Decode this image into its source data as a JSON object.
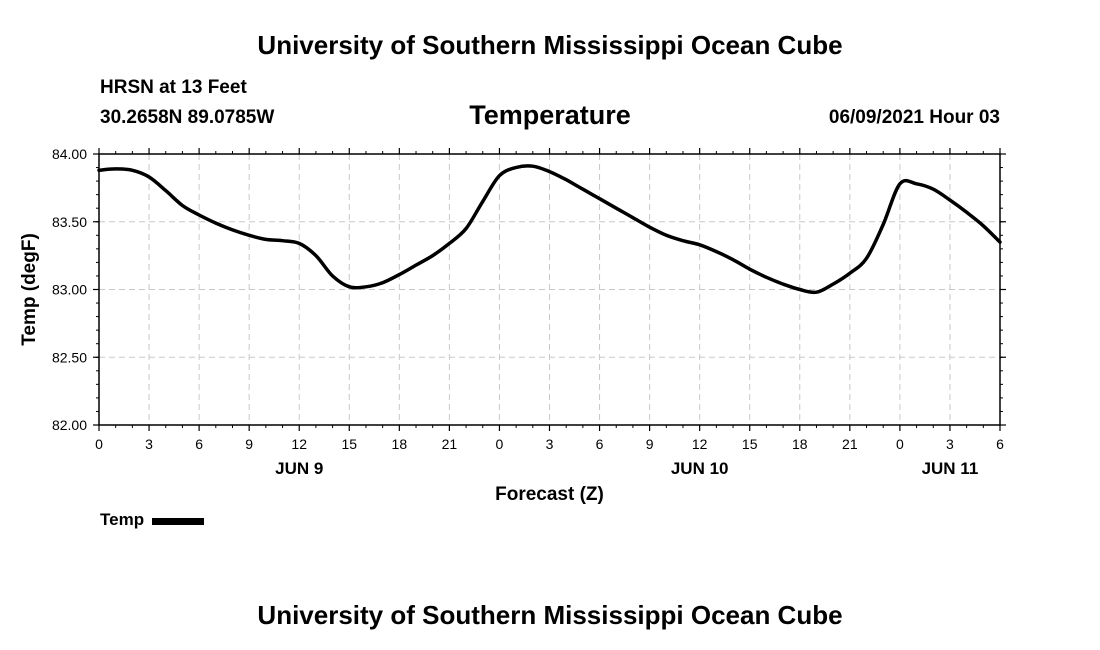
{
  "header": {
    "title_top": "University of Southern Mississippi Ocean Cube",
    "station": "HRSN at 13 Feet",
    "coords": "30.2658N  89.0785W",
    "chart_title": "Temperature",
    "datetime": "06/09/2021 Hour 03",
    "title_bottom": "University of Southern Mississippi Ocean Cube"
  },
  "legend": {
    "label": "Temp",
    "color": "#000000"
  },
  "chart_data": {
    "type": "line",
    "title": "Temperature",
    "xlabel": "Forecast (Z)",
    "ylabel": "Temp (degF)",
    "ylim": [
      82.0,
      84.0
    ],
    "yticks": [
      "82.00",
      "82.50",
      "83.00",
      "83.50",
      "84.00"
    ],
    "xticks": [
      "0",
      "3",
      "6",
      "9",
      "12",
      "15",
      "18",
      "21",
      "0",
      "3",
      "6",
      "9",
      "12",
      "15",
      "18",
      "21",
      "0",
      "3",
      "6"
    ],
    "day_labels": [
      {
        "label": "JUN 9",
        "hour": 12
      },
      {
        "label": "JUN 10",
        "hour": 36
      },
      {
        "label": "JUN 11",
        "hour": 51
      }
    ],
    "grid": true,
    "xlim_hours": [
      0,
      54
    ],
    "series": [
      {
        "name": "Temp",
        "x": [
          0,
          1,
          2,
          3,
          4,
          5,
          6,
          7,
          8,
          9,
          10,
          11,
          12,
          13,
          14,
          15,
          16,
          17,
          18,
          19,
          20,
          21,
          22,
          23,
          24,
          25,
          26,
          27,
          28,
          29,
          30,
          31,
          32,
          33,
          34,
          35,
          36,
          37,
          38,
          39,
          40,
          41,
          42,
          43,
          44,
          45,
          46,
          47,
          48,
          49,
          50,
          51,
          52,
          53,
          54
        ],
        "values": [
          83.88,
          83.89,
          83.88,
          83.83,
          83.73,
          83.62,
          83.55,
          83.49,
          83.44,
          83.4,
          83.37,
          83.36,
          83.34,
          83.25,
          83.1,
          83.02,
          83.02,
          83.05,
          83.11,
          83.18,
          83.25,
          83.34,
          83.45,
          83.65,
          83.84,
          83.9,
          83.91,
          83.87,
          83.81,
          83.74,
          83.67,
          83.6,
          83.53,
          83.46,
          83.4,
          83.36,
          83.33,
          83.28,
          83.22,
          83.15,
          83.09,
          83.04,
          83.0,
          82.98,
          83.04,
          83.12,
          83.23,
          83.48,
          83.78,
          83.78,
          83.74,
          83.66,
          83.57,
          83.47,
          83.35
        ]
      }
    ]
  }
}
